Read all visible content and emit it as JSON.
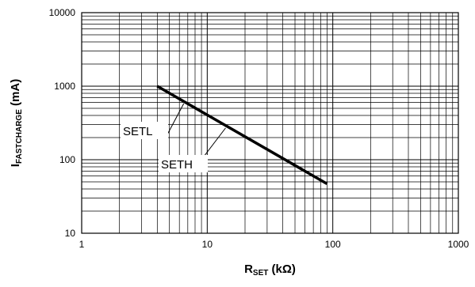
{
  "chart_data": {
    "type": "line",
    "x_scale": "log",
    "y_scale": "log",
    "xlim": [
      1,
      1000
    ],
    "ylim": [
      10,
      10000
    ],
    "grid": true,
    "x_ticks": [
      "1",
      "10",
      "100",
      "1000"
    ],
    "y_ticks": [
      "10",
      "100",
      "1000",
      "10000"
    ],
    "xlabel": {
      "main": "R",
      "sub": "SET",
      "suffix": " (kΩ)"
    },
    "ylabel": {
      "main": "I",
      "sub": "FASTCHARGE",
      "suffix": " (mA)"
    },
    "series": [
      {
        "x": [
          4,
          90
        ],
        "y": [
          1000,
          47
        ],
        "color": "#000000"
      }
    ],
    "annotations": [
      {
        "text": "SETL",
        "points_to": [
          6.5,
          580
        ]
      },
      {
        "text": "SETH",
        "points_to": [
          14,
          270
        ]
      }
    ]
  }
}
